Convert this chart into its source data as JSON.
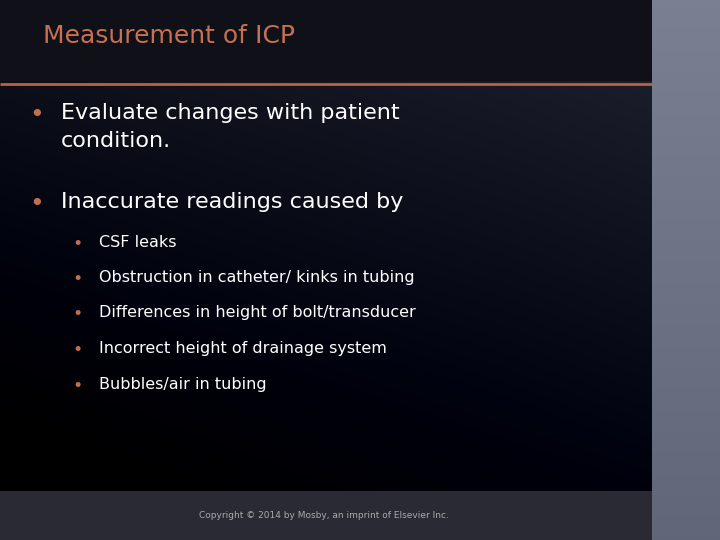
{
  "title": "Measurement of ICP",
  "title_color": "#c87050",
  "title_fontsize": 18,
  "separator_color": "#c06040",
  "bg_dark": "#0d0d12",
  "bg_mid": "#1a1d2a",
  "bg_right_panel": "#5a6070",
  "bullet_color": "#c07050",
  "text_color": "#ffffff",
  "main_bullets": [
    "Evaluate changes with patient\ncondition.",
    "Inaccurate readings caused by"
  ],
  "sub_bullets": [
    "CSF leaks",
    "Obstruction in catheter/ kinks in tubing",
    "Differences in height of bolt/transducer",
    "Incorrect height of drainage system",
    "Bubbles/air in tubing"
  ],
  "copyright": "Copyright © 2014 by Mosby, an imprint of Elsevier Inc.",
  "main_bullet_fontsize": 16,
  "sub_bullet_fontsize": 11.5
}
